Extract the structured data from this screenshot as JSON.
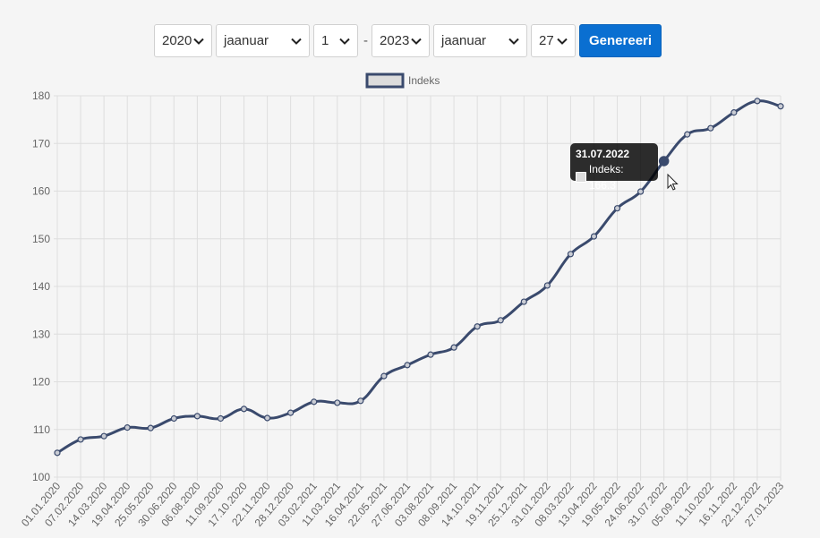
{
  "controls": {
    "start_year": "2020",
    "start_month": "jaanuar",
    "start_day": "1",
    "separator": "-",
    "end_year": "2023",
    "end_month": "jaanuar",
    "end_day": "27",
    "generate_label": "Genereeri",
    "accent": "#0a6fd1"
  },
  "tooltip": {
    "date": "31.07.2022",
    "text": "Indeks: 166.3"
  },
  "chart_data": {
    "type": "line",
    "title": "",
    "xlabel": "",
    "ylabel": "",
    "ylim": [
      100,
      180
    ],
    "yticks": [
      100,
      110,
      120,
      130,
      140,
      150,
      160,
      170,
      180
    ],
    "grid": true,
    "legend_position": "top",
    "line_color": "#3a4a6d",
    "categories": [
      "01.01.2020",
      "07.02.2020",
      "14.03.2020",
      "19.04.2020",
      "25.05.2020",
      "30.06.2020",
      "06.08.2020",
      "11.09.2020",
      "17.10.2020",
      "22.11.2020",
      "28.12.2020",
      "03.02.2021",
      "11.03.2021",
      "16.04.2021",
      "22.05.2021",
      "27.06.2021",
      "03.08.2021",
      "08.09.2021",
      "14.10.2021",
      "19.11.2021",
      "25.12.2021",
      "31.01.2022",
      "08.03.2022",
      "13.04.2022",
      "19.05.2022",
      "24.06.2022",
      "31.07.2022",
      "05.09.2022",
      "11.10.2022",
      "16.11.2022",
      "22.12.2022",
      "27.01.2023"
    ],
    "series": [
      {
        "name": "Indeks",
        "values": [
          105.1,
          107.9,
          108.6,
          110.4,
          110.3,
          112.3,
          112.8,
          112.3,
          114.3,
          112.4,
          113.5,
          115.8,
          115.6,
          116.0,
          121.2,
          123.5,
          125.7,
          127.2,
          131.6,
          132.9,
          136.8,
          140.2,
          146.8,
          150.5,
          156.4,
          159.9,
          166.3,
          171.9,
          173.2,
          176.5,
          178.9,
          177.8
        ]
      }
    ]
  }
}
